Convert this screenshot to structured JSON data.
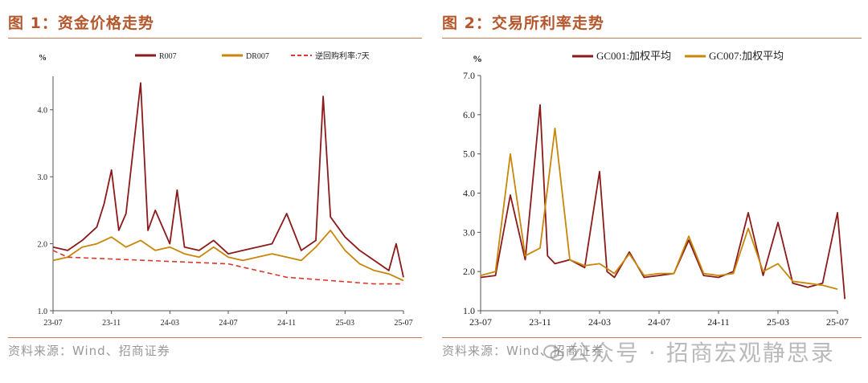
{
  "figures": [
    {
      "title": "图 1：资金价格走势",
      "source": "资料来源：Wind、招商证券"
    },
    {
      "title": "图 2：交易所利率走势",
      "source": "资料来源：Wind、招商证券"
    }
  ],
  "watermark": "公众号 · 招商宏观静思录",
  "chart_data": [
    {
      "type": "line",
      "ylabel": "%",
      "ylim": [
        1.0,
        4.5
      ],
      "yticks": [
        "1.0",
        "2.0",
        "3.0",
        "4.0"
      ],
      "xticks": [
        "23-07",
        "23-11",
        "24-03",
        "24-07",
        "24-11",
        "25-03",
        "25-07"
      ],
      "legend_position": "top",
      "grid": false,
      "series": [
        {
          "name": "R007",
          "color": "#8b1a1a",
          "style": "solid",
          "x": [
            "23-07",
            "23-08",
            "23-09",
            "23-10",
            "23-10",
            "23-11",
            "23-11",
            "23-12",
            "24-01",
            "24-01",
            "24-02",
            "24-03",
            "24-03",
            "24-04",
            "24-05",
            "24-06",
            "24-07",
            "24-08",
            "24-09",
            "24-10",
            "24-11",
            "24-12",
            "25-01",
            "25-01",
            "25-02",
            "25-03",
            "25-04",
            "25-05",
            "25-06",
            "25-06",
            "25-07"
          ],
          "values": [
            1.95,
            1.9,
            2.05,
            2.25,
            2.6,
            3.1,
            2.2,
            2.45,
            4.4,
            2.2,
            2.5,
            2.0,
            2.8,
            1.95,
            1.9,
            2.05,
            1.85,
            1.9,
            1.95,
            2.0,
            2.45,
            1.9,
            2.05,
            4.2,
            2.4,
            2.1,
            1.9,
            1.75,
            1.6,
            2.0,
            1.5
          ]
        },
        {
          "name": "DR007",
          "color": "#c8860a",
          "style": "solid",
          "x": [
            "23-07",
            "23-08",
            "23-09",
            "23-10",
            "23-11",
            "23-12",
            "24-01",
            "24-02",
            "24-03",
            "24-04",
            "24-05",
            "24-06",
            "24-07",
            "24-08",
            "24-09",
            "24-10",
            "24-11",
            "24-12",
            "25-01",
            "25-02",
            "25-03",
            "25-04",
            "25-05",
            "25-06",
            "25-07"
          ],
          "values": [
            1.75,
            1.8,
            1.95,
            2.0,
            2.1,
            1.95,
            2.05,
            1.9,
            1.95,
            1.85,
            1.8,
            1.95,
            1.8,
            1.75,
            1.8,
            1.85,
            1.8,
            1.75,
            1.95,
            2.2,
            1.9,
            1.7,
            1.6,
            1.55,
            1.45
          ]
        },
        {
          "name": "逆回购利率:7天",
          "color": "#d9382a",
          "style": "dashed",
          "x": [
            "23-07",
            "23-08",
            "24-07",
            "24-11",
            "25-05",
            "25-07"
          ],
          "values": [
            1.9,
            1.8,
            1.7,
            1.5,
            1.4,
            1.4
          ]
        }
      ]
    },
    {
      "type": "line",
      "ylabel": "%",
      "ylim": [
        1.0,
        7.0
      ],
      "yticks": [
        "1.0",
        "2.0",
        "3.0",
        "4.0",
        "5.0",
        "6.0",
        "7.0"
      ],
      "xticks": [
        "23-07",
        "23-11",
        "24-03",
        "24-07",
        "24-11",
        "25-03",
        "25-07"
      ],
      "legend_position": "top",
      "grid": false,
      "series": [
        {
          "name": "GC001:加权平均",
          "color": "#8b1a1a",
          "style": "solid",
          "x": [
            "23-07",
            "23-08",
            "23-09",
            "23-10",
            "23-11",
            "23-11",
            "23-12",
            "24-01",
            "24-02",
            "24-03",
            "24-03",
            "24-04",
            "24-05",
            "24-06",
            "24-07",
            "24-08",
            "24-09",
            "24-10",
            "24-11",
            "24-12",
            "25-01",
            "25-02",
            "25-03",
            "25-04",
            "25-05",
            "25-06",
            "25-07",
            "25-07"
          ],
          "values": [
            1.85,
            1.9,
            3.95,
            2.3,
            6.25,
            2.4,
            2.2,
            2.3,
            2.1,
            4.55,
            2.0,
            1.85,
            2.5,
            1.85,
            1.9,
            1.95,
            2.8,
            1.9,
            1.85,
            2.0,
            3.5,
            1.9,
            3.25,
            1.7,
            1.6,
            1.7,
            3.5,
            1.3
          ]
        },
        {
          "name": "GC007:加权平均",
          "color": "#c8860a",
          "style": "solid",
          "x": [
            "23-07",
            "23-08",
            "23-09",
            "23-10",
            "23-11",
            "23-12",
            "24-01",
            "24-02",
            "24-03",
            "24-04",
            "24-05",
            "24-06",
            "24-07",
            "24-08",
            "24-09",
            "24-10",
            "24-11",
            "24-12",
            "25-01",
            "25-02",
            "25-03",
            "25-04",
            "25-05",
            "25-06",
            "25-07"
          ],
          "values": [
            1.9,
            2.0,
            5.0,
            2.4,
            2.6,
            5.65,
            2.3,
            2.15,
            2.2,
            1.95,
            2.45,
            1.9,
            1.95,
            1.95,
            2.9,
            1.95,
            1.9,
            1.95,
            3.1,
            2.0,
            2.2,
            1.75,
            1.7,
            1.65,
            1.55
          ]
        }
      ]
    }
  ]
}
